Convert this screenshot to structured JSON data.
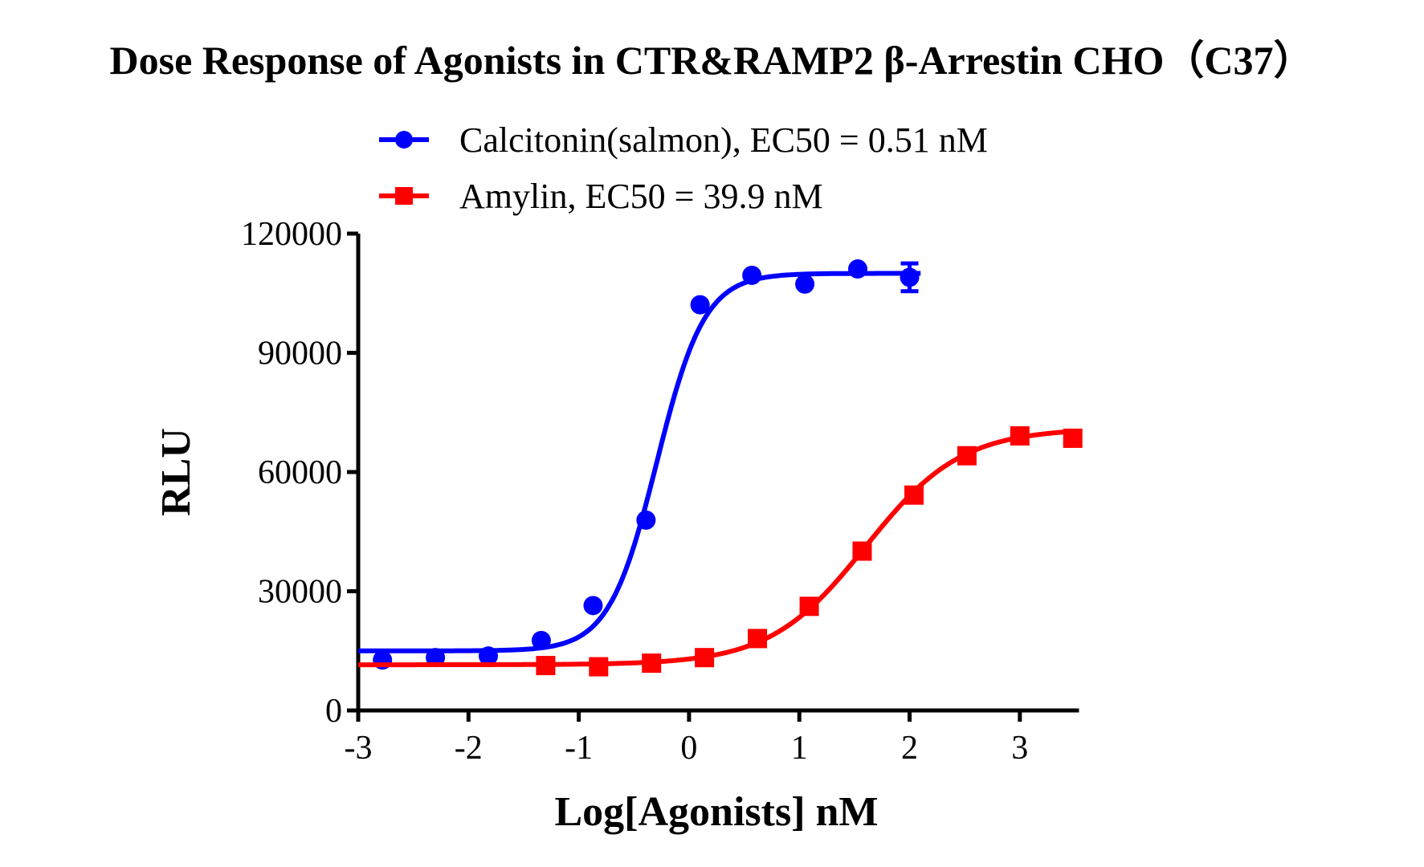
{
  "chart_data": {
    "type": "scatter",
    "title": "Dose Response of Agonists in CTR&RAMP2 β-Arrestin CHO（C37）",
    "xlabel": "Log[Agonists] nM",
    "ylabel": "RLU",
    "xlim": [
      -3,
      3.5
    ],
    "ylim": [
      0,
      120000
    ],
    "xticks": [
      -3,
      -2,
      -1,
      0,
      1,
      2,
      3
    ],
    "xtick_labels": [
      "-3",
      "-2",
      "-1",
      "0",
      "1",
      "2",
      "3"
    ],
    "yticks": [
      0,
      30000,
      60000,
      90000,
      120000
    ],
    "ytick_labels": [
      "0",
      "30000",
      "60000",
      "90000",
      "120000"
    ],
    "grid": false,
    "legend_position": "top",
    "series": [
      {
        "name": "Calcitonin(salmon), EC50 = 0.51 nM",
        "color": "#0000ff",
        "marker": "circle",
        "x": [
          -2.78,
          -2.3,
          -1.82,
          -1.34,
          -0.87,
          -0.39,
          0.1,
          0.57,
          1.05,
          1.53,
          2.0
        ],
        "y": [
          12700,
          13300,
          13700,
          17600,
          26400,
          47900,
          102100,
          109500,
          107300,
          111100,
          109000
        ],
        "error": [
          0,
          0,
          0,
          0,
          0,
          0,
          0,
          0,
          0,
          0,
          3500
        ],
        "fit": {
          "bottom": 15000,
          "top": 110000,
          "logEC50": -0.292,
          "hill": 2.0
        }
      },
      {
        "name": "Amylin, EC50 = 39.9 nM",
        "color": "#ff0000",
        "marker": "square",
        "x": [
          -1.3,
          -0.82,
          -0.34,
          0.14,
          0.62,
          1.09,
          1.57,
          2.04,
          2.52,
          3.0,
          3.48
        ],
        "y": [
          11300,
          11000,
          11900,
          13300,
          18100,
          26200,
          40100,
          54200,
          64100,
          69100,
          68500
        ],
        "error": [
          0,
          0,
          0,
          0,
          0,
          0,
          0,
          0,
          0,
          0,
          0
        ],
        "fit": {
          "bottom": 11500,
          "top": 71000,
          "logEC50": 1.601,
          "hill": 1.0
        }
      }
    ]
  }
}
